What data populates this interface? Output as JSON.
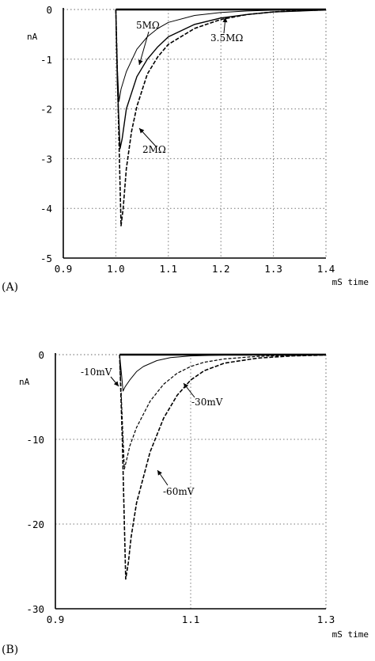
{
  "chart_data": [
    {
      "type": "line",
      "panel_label": "(A)",
      "ylabel": "nA",
      "xlabel": "mS    time",
      "xlim": [
        0.9,
        1.4
      ],
      "ylim": [
        -5,
        0
      ],
      "xticks": [
        "0.9",
        "1.0",
        "1.1",
        "1.2",
        "1.3",
        "1.4"
      ],
      "yticks": [
        "0",
        "-1",
        "-2",
        "-3",
        "-4",
        "-5"
      ],
      "grid": true,
      "series": [
        {
          "name": "5MΩ",
          "x": [
            1.0,
            1.003,
            1.006,
            1.01,
            1.02,
            1.04,
            1.06,
            1.08,
            1.1,
            1.15,
            1.2,
            1.25,
            1.3,
            1.35,
            1.4
          ],
          "y": [
            0,
            -1.2,
            -1.85,
            -1.6,
            -1.25,
            -0.8,
            -0.55,
            -0.38,
            -0.26,
            -0.12,
            -0.06,
            -0.03,
            -0.015,
            -0.01,
            -0.005
          ]
        },
        {
          "name": "3.5MΩ",
          "x": [
            1.0,
            1.003,
            1.008,
            1.012,
            1.02,
            1.04,
            1.06,
            1.08,
            1.1,
            1.15,
            1.2,
            1.25,
            1.3,
            1.35,
            1.4
          ],
          "y": [
            0,
            -1.5,
            -2.8,
            -2.6,
            -2.0,
            -1.35,
            -1.0,
            -0.75,
            -0.55,
            -0.3,
            -0.17,
            -0.1,
            -0.05,
            -0.03,
            -0.01
          ]
        },
        {
          "name": "2MΩ",
          "x": [
            1.0,
            1.004,
            1.01,
            1.014,
            1.02,
            1.03,
            1.04,
            1.06,
            1.08,
            1.1,
            1.15,
            1.2,
            1.25,
            1.3,
            1.35,
            1.4
          ],
          "y": [
            0,
            -1.8,
            -4.35,
            -4.0,
            -3.2,
            -2.45,
            -1.95,
            -1.3,
            -0.95,
            -0.7,
            -0.38,
            -0.2,
            -0.1,
            -0.05,
            -0.02,
            -0.01
          ]
        }
      ],
      "annotations": [
        "5MΩ",
        "3.5MΩ",
        "2MΩ"
      ]
    },
    {
      "type": "line",
      "panel_label": "(B)",
      "ylabel": "nA",
      "xlabel": "mS    time",
      "xlim": [
        0.9,
        1.3
      ],
      "ylim": [
        -30,
        0
      ],
      "xticks": [
        "0.9",
        "1.1",
        "1.3"
      ],
      "yticks": [
        "0",
        "-10",
        "-20",
        "-30"
      ],
      "grid": true,
      "series": [
        {
          "name": "-10mV",
          "x": [
            0.995,
            0.998,
            1.0,
            1.003,
            1.01,
            1.02,
            1.03,
            1.05,
            1.07,
            1.1,
            1.15,
            1.2,
            1.25,
            1.3
          ],
          "y": [
            0,
            -2.5,
            -4.3,
            -3.8,
            -3.0,
            -2.0,
            -1.4,
            -0.7,
            -0.35,
            -0.15,
            -0.05,
            -0.02,
            -0.01,
            0
          ]
        },
        {
          "name": "-30mV",
          "x": [
            0.995,
            0.998,
            1.002,
            1.005,
            1.01,
            1.02,
            1.04,
            1.06,
            1.08,
            1.1,
            1.12,
            1.15,
            1.2,
            1.25,
            1.3
          ],
          "y": [
            0,
            -6,
            -13.5,
            -12.5,
            -10.8,
            -8.6,
            -5.5,
            -3.5,
            -2.2,
            -1.4,
            -0.9,
            -0.5,
            -0.2,
            -0.08,
            -0.03
          ]
        },
        {
          "name": "-60mV",
          "x": [
            0.995,
            0.999,
            1.004,
            1.008,
            1.012,
            1.02,
            1.04,
            1.06,
            1.08,
            1.1,
            1.12,
            1.15,
            1.2,
            1.25,
            1.3
          ],
          "y": [
            0,
            -10,
            -26.5,
            -24.5,
            -21.5,
            -17.5,
            -11.5,
            -7.5,
            -4.8,
            -3.0,
            -1.9,
            -1.0,
            -0.4,
            -0.15,
            -0.05
          ]
        }
      ],
      "annotations": [
        "-10mV",
        "-30mV",
        "-60mV"
      ]
    }
  ]
}
